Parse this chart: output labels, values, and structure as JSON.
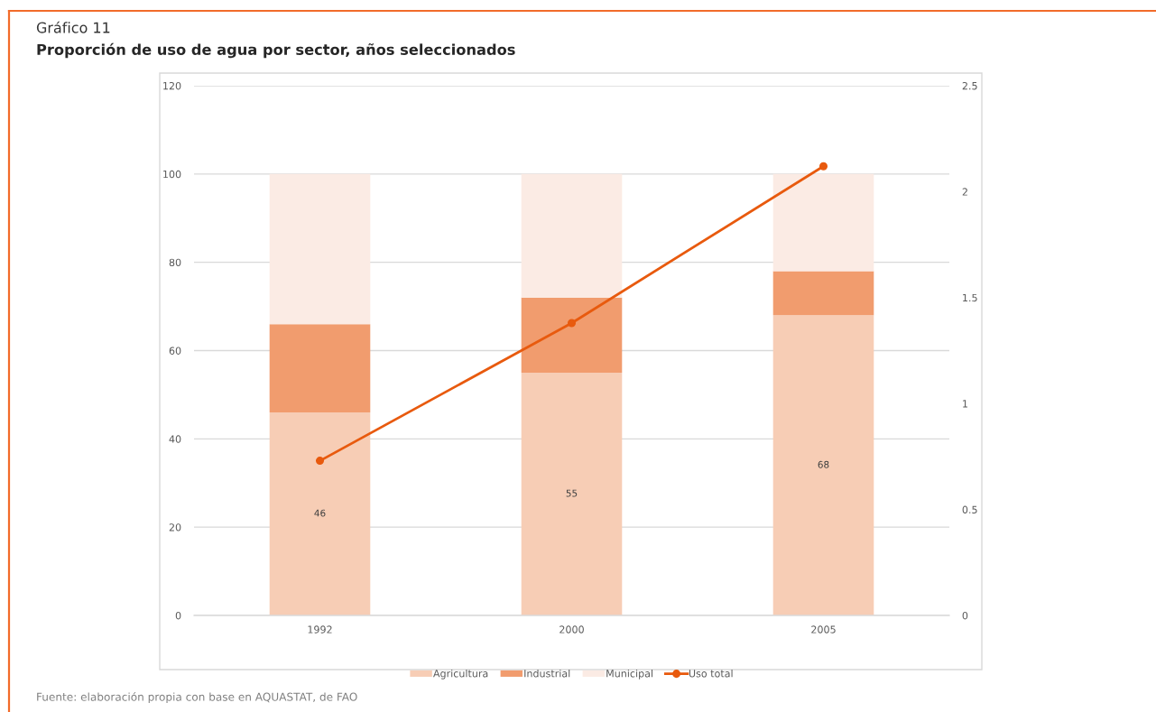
{
  "chart_data": {
    "type": "bar",
    "stacked": true,
    "subtitle": "Gráfico 11",
    "title": "Proporción de uso de agua por sector, años seleccionados",
    "categories": [
      "1992",
      "2000",
      "2005"
    ],
    "series": [
      {
        "name": "Agricultura",
        "color": "#f7cdb5",
        "values": [
          46,
          55,
          68
        ],
        "value_labels": [
          "46",
          "55",
          "68"
        ]
      },
      {
        "name": "Industrial",
        "color": "#f19c6e",
        "values": [
          20,
          17,
          10
        ]
      },
      {
        "name": "Municipal",
        "color": "#fbebe4",
        "values": [
          34,
          28,
          22
        ]
      },
      {
        "name": "Uso total",
        "type": "line",
        "axis": "y2",
        "color": "#e85a0e",
        "values": [
          0.73,
          1.38,
          2.12
        ],
        "marker": "circle"
      }
    ],
    "ylim": [
      0,
      120
    ],
    "yticks": [
      0,
      20,
      40,
      60,
      80,
      100,
      120
    ],
    "y2lim": [
      0,
      2.5
    ],
    "y2ticks": [
      0,
      0.5,
      1,
      1.5,
      2,
      2.5
    ],
    "grid": "y",
    "legend": "bottom",
    "annotations": [
      "Fuente: elaboración propia con base en AQUASTAT, de FAO"
    ]
  }
}
